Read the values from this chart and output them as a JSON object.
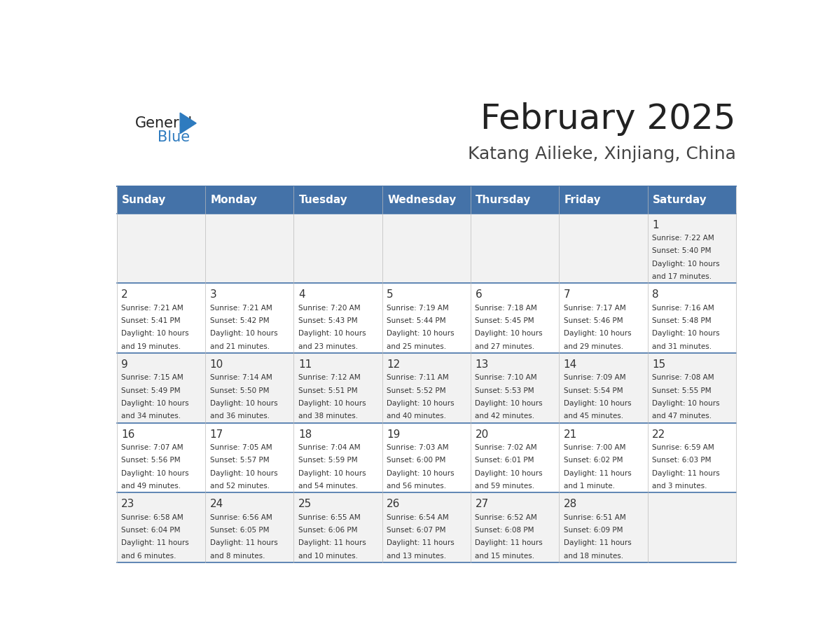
{
  "title": "February 2025",
  "subtitle": "Katang Ailieke, Xinjiang, China",
  "days_of_week": [
    "Sunday",
    "Monday",
    "Tuesday",
    "Wednesday",
    "Thursday",
    "Friday",
    "Saturday"
  ],
  "header_bg": "#4472a8",
  "header_text": "#ffffff",
  "row_bg_even": "#f2f2f2",
  "row_bg_odd": "#ffffff",
  "cell_text": "#333333",
  "border_color": "#4472a8",
  "title_color": "#222222",
  "subtitle_color": "#444444",
  "logo_general_color": "#222222",
  "logo_blue_color": "#2e7bbf",
  "calendar_data": [
    {
      "day": 1,
      "col": 6,
      "row": 0,
      "sunrise": "7:22 AM",
      "sunset": "5:40 PM",
      "daylight": "10 hours and 17 minutes."
    },
    {
      "day": 2,
      "col": 0,
      "row": 1,
      "sunrise": "7:21 AM",
      "sunset": "5:41 PM",
      "daylight": "10 hours and 19 minutes."
    },
    {
      "day": 3,
      "col": 1,
      "row": 1,
      "sunrise": "7:21 AM",
      "sunset": "5:42 PM",
      "daylight": "10 hours and 21 minutes."
    },
    {
      "day": 4,
      "col": 2,
      "row": 1,
      "sunrise": "7:20 AM",
      "sunset": "5:43 PM",
      "daylight": "10 hours and 23 minutes."
    },
    {
      "day": 5,
      "col": 3,
      "row": 1,
      "sunrise": "7:19 AM",
      "sunset": "5:44 PM",
      "daylight": "10 hours and 25 minutes."
    },
    {
      "day": 6,
      "col": 4,
      "row": 1,
      "sunrise": "7:18 AM",
      "sunset": "5:45 PM",
      "daylight": "10 hours and 27 minutes."
    },
    {
      "day": 7,
      "col": 5,
      "row": 1,
      "sunrise": "7:17 AM",
      "sunset": "5:46 PM",
      "daylight": "10 hours and 29 minutes."
    },
    {
      "day": 8,
      "col": 6,
      "row": 1,
      "sunrise": "7:16 AM",
      "sunset": "5:48 PM",
      "daylight": "10 hours and 31 minutes."
    },
    {
      "day": 9,
      "col": 0,
      "row": 2,
      "sunrise": "7:15 AM",
      "sunset": "5:49 PM",
      "daylight": "10 hours and 34 minutes."
    },
    {
      "day": 10,
      "col": 1,
      "row": 2,
      "sunrise": "7:14 AM",
      "sunset": "5:50 PM",
      "daylight": "10 hours and 36 minutes."
    },
    {
      "day": 11,
      "col": 2,
      "row": 2,
      "sunrise": "7:12 AM",
      "sunset": "5:51 PM",
      "daylight": "10 hours and 38 minutes."
    },
    {
      "day": 12,
      "col": 3,
      "row": 2,
      "sunrise": "7:11 AM",
      "sunset": "5:52 PM",
      "daylight": "10 hours and 40 minutes."
    },
    {
      "day": 13,
      "col": 4,
      "row": 2,
      "sunrise": "7:10 AM",
      "sunset": "5:53 PM",
      "daylight": "10 hours and 42 minutes."
    },
    {
      "day": 14,
      "col": 5,
      "row": 2,
      "sunrise": "7:09 AM",
      "sunset": "5:54 PM",
      "daylight": "10 hours and 45 minutes."
    },
    {
      "day": 15,
      "col": 6,
      "row": 2,
      "sunrise": "7:08 AM",
      "sunset": "5:55 PM",
      "daylight": "10 hours and 47 minutes."
    },
    {
      "day": 16,
      "col": 0,
      "row": 3,
      "sunrise": "7:07 AM",
      "sunset": "5:56 PM",
      "daylight": "10 hours and 49 minutes."
    },
    {
      "day": 17,
      "col": 1,
      "row": 3,
      "sunrise": "7:05 AM",
      "sunset": "5:57 PM",
      "daylight": "10 hours and 52 minutes."
    },
    {
      "day": 18,
      "col": 2,
      "row": 3,
      "sunrise": "7:04 AM",
      "sunset": "5:59 PM",
      "daylight": "10 hours and 54 minutes."
    },
    {
      "day": 19,
      "col": 3,
      "row": 3,
      "sunrise": "7:03 AM",
      "sunset": "6:00 PM",
      "daylight": "10 hours and 56 minutes."
    },
    {
      "day": 20,
      "col": 4,
      "row": 3,
      "sunrise": "7:02 AM",
      "sunset": "6:01 PM",
      "daylight": "10 hours and 59 minutes."
    },
    {
      "day": 21,
      "col": 5,
      "row": 3,
      "sunrise": "7:00 AM",
      "sunset": "6:02 PM",
      "daylight": "11 hours and 1 minute."
    },
    {
      "day": 22,
      "col": 6,
      "row": 3,
      "sunrise": "6:59 AM",
      "sunset": "6:03 PM",
      "daylight": "11 hours and 3 minutes."
    },
    {
      "day": 23,
      "col": 0,
      "row": 4,
      "sunrise": "6:58 AM",
      "sunset": "6:04 PM",
      "daylight": "11 hours and 6 minutes."
    },
    {
      "day": 24,
      "col": 1,
      "row": 4,
      "sunrise": "6:56 AM",
      "sunset": "6:05 PM",
      "daylight": "11 hours and 8 minutes."
    },
    {
      "day": 25,
      "col": 2,
      "row": 4,
      "sunrise": "6:55 AM",
      "sunset": "6:06 PM",
      "daylight": "11 hours and 10 minutes."
    },
    {
      "day": 26,
      "col": 3,
      "row": 4,
      "sunrise": "6:54 AM",
      "sunset": "6:07 PM",
      "daylight": "11 hours and 13 minutes."
    },
    {
      "day": 27,
      "col": 4,
      "row": 4,
      "sunrise": "6:52 AM",
      "sunset": "6:08 PM",
      "daylight": "11 hours and 15 minutes."
    },
    {
      "day": 28,
      "col": 5,
      "row": 4,
      "sunrise": "6:51 AM",
      "sunset": "6:09 PM",
      "daylight": "11 hours and 18 minutes."
    }
  ]
}
